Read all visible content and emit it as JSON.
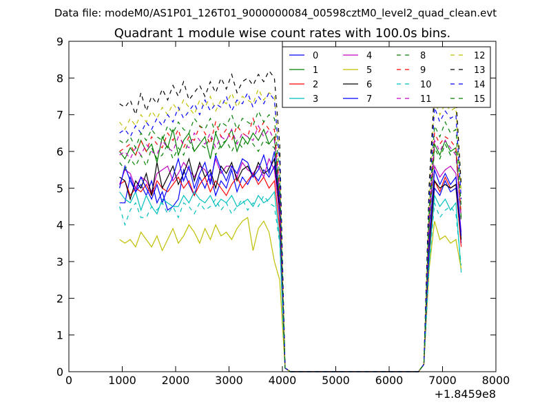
{
  "suptitle": "Data file: modeM0/AS1P01_126T01_9000000084_00598cztM0_level2_quad_clean.evt",
  "chart_data": {
    "type": "line",
    "title": "Quadrant 1 module wise count rates with 100.0s bins.",
    "xlabel": "",
    "ylabel": "",
    "x_offset_label": "+1.8459e8",
    "xlim": [
      0,
      8000
    ],
    "ylim": [
      0,
      9
    ],
    "xticks": [
      "0",
      "1000",
      "2000",
      "3000",
      "4000",
      "5000",
      "6000",
      "7000",
      "8000"
    ],
    "yticks": [
      "0",
      "1",
      "2",
      "3",
      "4",
      "5",
      "6",
      "7",
      "8",
      "9"
    ],
    "legend_position": "top-right",
    "x": [
      950,
      1050,
      1150,
      1250,
      1350,
      1450,
      1550,
      1650,
      1750,
      1850,
      1950,
      2050,
      2150,
      2250,
      2350,
      2450,
      2550,
      2650,
      2750,
      2850,
      2950,
      3050,
      3150,
      3250,
      3350,
      3450,
      3550,
      3650,
      3750,
      3850,
      3950,
      4050,
      4150,
      4250,
      4350,
      4450,
      4550,
      4650,
      4750,
      4850,
      4950,
      5050,
      5150,
      5250,
      5350,
      5450,
      5550,
      5650,
      5750,
      5850,
      5950,
      6050,
      6150,
      6250,
      6350,
      6450,
      6550,
      6650,
      6750,
      6850,
      6950,
      7050,
      7150,
      7250,
      7350
    ],
    "series": [
      {
        "name": "0",
        "color": "#0000ff",
        "dash": "solid",
        "values": [
          4.6,
          4.6,
          5.3,
          4.9,
          5.1,
          4.8,
          5.2,
          4.6,
          4.9,
          4.4,
          4.5,
          4.7,
          5.5,
          5.1,
          4.8,
          5.3,
          5.0,
          5.4,
          4.8,
          5.2,
          5.0,
          5.5,
          4.9,
          5.3,
          5.1,
          5.4,
          5.2,
          5.5,
          5.3,
          5.6,
          4.2,
          0.1,
          0,
          0,
          0,
          0,
          0,
          0,
          0,
          0,
          0,
          0,
          0,
          0,
          0,
          0,
          0,
          0,
          0,
          0,
          0,
          0,
          0,
          0,
          0,
          0,
          0,
          0.2,
          3.3,
          5.0,
          4.8,
          5.2,
          4.9,
          5.0,
          3.5
        ]
      },
      {
        "name": "1",
        "color": "#008000",
        "dash": "solid",
        "values": [
          6.0,
          5.8,
          6.1,
          5.9,
          6.3,
          6.0,
          6.2,
          5.7,
          6.4,
          6.1,
          6.6,
          5.9,
          6.3,
          6.5,
          6.0,
          6.2,
          6.4,
          5.8,
          6.5,
          6.1,
          6.3,
          6.6,
          6.0,
          6.4,
          6.2,
          6.5,
          6.3,
          6.6,
          6.2,
          6.4,
          4.8,
          0.1,
          0,
          0,
          0,
          0,
          0,
          0,
          0,
          0,
          0,
          0,
          0,
          0,
          0,
          0,
          0,
          0,
          0,
          0,
          0,
          0,
          0,
          0,
          0,
          0,
          0,
          0.2,
          4.0,
          6.2,
          5.9,
          6.3,
          6.0,
          6.1,
          4.2
        ]
      },
      {
        "name": "2",
        "color": "#ff0000",
        "dash": "solid",
        "values": [
          5.1,
          5.2,
          4.8,
          5.0,
          4.9,
          5.1,
          4.8,
          5.2,
          5.0,
          4.9,
          5.1,
          5.3,
          5.0,
          5.2,
          4.8,
          5.1,
          5.3,
          4.9,
          5.2,
          5.0,
          4.8,
          5.1,
          5.3,
          5.0,
          5.2,
          5.4,
          5.1,
          5.3,
          5.0,
          5.2,
          3.9,
          0.1,
          0,
          0,
          0,
          0,
          0,
          0,
          0,
          0,
          0,
          0,
          0,
          0,
          0,
          0,
          0,
          0,
          0,
          0,
          0,
          0,
          0,
          0,
          0,
          0,
          0,
          0.2,
          3.1,
          5.2,
          4.9,
          5.3,
          5.0,
          5.1,
          3.4
        ]
      },
      {
        "name": "3",
        "color": "#00bfbf",
        "dash": "solid",
        "values": [
          4.9,
          4.7,
          4.6,
          4.9,
          4.4,
          4.8,
          4.5,
          4.3,
          4.7,
          4.6,
          4.5,
          4.5,
          4.8,
          4.6,
          4.9,
          4.7,
          4.6,
          4.8,
          4.5,
          4.7,
          4.6,
          4.8,
          4.5,
          4.6,
          4.7,
          4.5,
          4.8,
          4.6,
          4.7,
          4.9,
          3.6,
          0.1,
          0,
          0,
          0,
          0,
          0,
          0,
          0,
          0,
          0,
          0,
          0,
          0,
          0,
          0,
          0,
          0,
          0,
          0,
          0,
          0,
          0,
          0,
          0,
          0,
          0,
          0.2,
          3.0,
          4.8,
          4.5,
          4.7,
          4.4,
          4.6,
          2.7
        ]
      },
      {
        "name": "4",
        "color": "#bf00bf",
        "dash": "solid",
        "values": [
          5.1,
          5.5,
          5.4,
          5.0,
          5.3,
          5.2,
          4.9,
          5.4,
          5.5,
          5.6,
          5.2,
          5.4,
          5.7,
          5.5,
          5.3,
          5.6,
          5.5,
          5.2,
          5.8,
          5.4,
          5.6,
          5.6,
          5.3,
          5.7,
          5.5,
          5.4,
          5.6,
          5.3,
          5.8,
          5.5,
          4.3,
          0.1,
          0,
          0,
          0,
          0,
          0,
          0,
          0,
          0,
          0,
          0,
          0,
          0,
          0,
          0,
          0,
          0,
          0,
          0,
          0,
          0,
          0,
          0,
          0,
          0,
          0,
          0.2,
          3.6,
          5.6,
          5.3,
          5.5,
          5.6,
          5.4,
          3.8
        ]
      },
      {
        "name": "5",
        "color": "#bfbf00",
        "dash": "solid",
        "values": [
          3.6,
          3.5,
          3.6,
          3.4,
          3.8,
          3.6,
          3.4,
          3.7,
          3.3,
          3.6,
          3.9,
          3.5,
          3.7,
          4.0,
          3.8,
          3.5,
          3.9,
          3.6,
          4.0,
          3.7,
          3.8,
          3.6,
          3.9,
          4.1,
          4.2,
          3.3,
          3.9,
          4.1,
          3.8,
          3.0,
          2.5,
          0.1,
          0,
          0,
          0,
          0,
          0,
          0,
          0,
          0,
          0,
          0,
          0,
          0,
          0,
          0,
          0,
          0,
          0,
          0,
          0,
          0,
          0,
          0,
          0,
          0,
          0,
          0.2,
          2.8,
          4.1,
          3.6,
          3.7,
          3.5,
          3.6,
          2.8
        ]
      },
      {
        "name": "6",
        "color": "#000000",
        "dash": "solid",
        "values": [
          5.3,
          5.2,
          4.7,
          5.2,
          5.0,
          5.4,
          4.8,
          5.7,
          5.0,
          5.3,
          5.6,
          5.1,
          5.4,
          5.8,
          5.2,
          5.7,
          5.3,
          5.5,
          5.0,
          5.6,
          5.4,
          5.7,
          5.2,
          5.5,
          5.6,
          5.3,
          5.7,
          5.4,
          5.5,
          5.8,
          4.4,
          0.1,
          0,
          0,
          0,
          0,
          0,
          0,
          0,
          0,
          0,
          0,
          0,
          0,
          0,
          0,
          0,
          0,
          0,
          0,
          0,
          0,
          0,
          0,
          0,
          0,
          0,
          0.2,
          3.4,
          5.2,
          5.0,
          5.1,
          5.0,
          5.1,
          3.6
        ]
      },
      {
        "name": "7",
        "color": "#0000ff",
        "dash": "solid",
        "values": [
          5.0,
          5.6,
          5.2,
          4.9,
          5.3,
          5.0,
          4.7,
          5.1,
          4.6,
          5.0,
          5.3,
          5.8,
          5.2,
          5.6,
          5.0,
          5.4,
          5.7,
          5.1,
          5.9,
          5.5,
          5.2,
          5.6,
          5.4,
          5.8,
          5.7,
          5.3,
          5.5,
          5.9,
          5.4,
          6.0,
          4.6,
          0.1,
          0,
          0,
          0,
          0,
          0,
          0,
          0,
          0,
          0,
          0,
          0,
          0,
          0,
          0,
          0,
          0,
          0,
          0,
          0,
          0,
          0,
          0,
          0,
          0,
          0,
          0.2,
          3.5,
          5.5,
          5.1,
          5.4,
          5.1,
          5.3,
          3.7
        ]
      },
      {
        "name": "8",
        "color": "#008000",
        "dash": "dashed",
        "values": [
          5.7,
          5.5,
          5.8,
          5.6,
          5.9,
          5.6,
          6.1,
          5.8,
          5.9,
          6.2,
          5.8,
          6.1,
          5.9,
          6.3,
          6.0,
          6.2,
          6.1,
          6.4,
          5.9,
          6.2,
          6.3,
          6.0,
          6.3,
          6.1,
          6.4,
          6.2,
          6.0,
          6.3,
          6.2,
          6.1,
          4.7,
          0.1,
          0,
          0,
          0,
          0,
          0,
          0,
          0,
          0,
          0,
          0,
          0,
          0,
          0,
          0,
          0,
          0,
          0,
          0,
          0,
          0,
          0,
          0,
          0,
          0,
          0,
          0.2,
          3.9,
          6.1,
          5.8,
          6.2,
          5.9,
          6.0,
          4.1
        ]
      },
      {
        "name": "9",
        "color": "#ff0000",
        "dash": "dashed",
        "values": [
          6.0,
          6.1,
          6.2,
          5.9,
          6.3,
          6.0,
          6.4,
          6.2,
          6.1,
          6.5,
          6.3,
          6.6,
          6.1,
          6.4,
          6.3,
          6.7,
          6.5,
          6.2,
          6.8,
          6.4,
          6.6,
          6.3,
          6.7,
          6.5,
          6.4,
          6.9,
          6.5,
          6.8,
          6.6,
          6.6,
          5.0,
          0.1,
          0,
          0,
          0,
          0,
          0,
          0,
          0,
          0,
          0,
          0,
          0,
          0,
          0,
          0,
          0,
          0,
          0,
          0,
          0,
          0,
          0,
          0,
          0,
          0,
          0,
          0.2,
          4.2,
          6.5,
          6.2,
          6.4,
          6.3,
          6.1,
          4.3
        ]
      },
      {
        "name": "10",
        "color": "#00bfbf",
        "dash": "dashed",
        "values": [
          4.5,
          4.0,
          4.4,
          4.6,
          4.2,
          4.2,
          4.5,
          4.4,
          4.6,
          4.3,
          4.5,
          4.2,
          4.6,
          4.5,
          4.3,
          4.6,
          4.4,
          4.5,
          4.7,
          4.4,
          4.6,
          4.3,
          4.5,
          4.7,
          4.4,
          4.6,
          4.5,
          4.8,
          4.6,
          4.5,
          3.5,
          0.1,
          0,
          0,
          0,
          0,
          0,
          0,
          0,
          0,
          0,
          0,
          0,
          0,
          0,
          0,
          0,
          0,
          0,
          0,
          0,
          0,
          0,
          0,
          0,
          0,
          0,
          0.2,
          2.9,
          4.6,
          4.2,
          4.4,
          4.5,
          4.3,
          2.9
        ]
      },
      {
        "name": "11",
        "color": "#bf00bf",
        "dash": "dashed",
        "values": [
          5.9,
          6.0,
          5.8,
          6.1,
          5.9,
          6.2,
          6.0,
          5.9,
          6.3,
          6.1,
          6.0,
          6.4,
          6.2,
          6.1,
          6.5,
          6.3,
          6.2,
          6.5,
          6.1,
          6.4,
          6.3,
          6.6,
          6.2,
          6.5,
          6.4,
          6.3,
          6.7,
          6.4,
          6.6,
          6.3,
          4.9,
          0.1,
          0,
          0,
          0,
          0,
          0,
          0,
          0,
          0,
          0,
          0,
          0,
          0,
          0,
          0,
          0,
          0,
          0,
          0,
          0,
          0,
          0,
          0,
          0,
          0,
          0,
          0.2,
          4.1,
          6.3,
          6.0,
          6.3,
          6.1,
          5.9,
          4.2
        ]
      },
      {
        "name": "12",
        "color": "#bfbf00",
        "dash": "dashed",
        "values": [
          6.8,
          6.6,
          6.9,
          6.7,
          7.0,
          6.8,
          7.1,
          6.9,
          7.2,
          7.0,
          7.3,
          7.1,
          7.4,
          7.2,
          7.0,
          7.4,
          7.2,
          7.5,
          7.1,
          7.4,
          7.3,
          7.6,
          7.2,
          7.5,
          7.4,
          7.3,
          7.7,
          7.4,
          7.6,
          7.5,
          5.8,
          0.1,
          0,
          0,
          0,
          0,
          0,
          0,
          0,
          0,
          0,
          0,
          0,
          0,
          0,
          0,
          0,
          0,
          0,
          0,
          0,
          0,
          0,
          0,
          0,
          0,
          0,
          0.2,
          4.8,
          7.4,
          7.0,
          7.3,
          7.1,
          7.2,
          4.9
        ]
      },
      {
        "name": "13",
        "color": "#000000",
        "dash": "dashed",
        "values": [
          7.3,
          7.2,
          7.4,
          7.0,
          7.6,
          7.1,
          7.5,
          7.3,
          7.7,
          7.4,
          7.8,
          7.5,
          7.9,
          7.4,
          7.6,
          7.8,
          7.5,
          7.9,
          7.6,
          8.0,
          7.7,
          8.1,
          7.6,
          7.9,
          8.0,
          7.8,
          8.1,
          7.9,
          8.2,
          8.0,
          6.2,
          0.1,
          0,
          0,
          0,
          0,
          0,
          0,
          0,
          0,
          0,
          0,
          0,
          0,
          0,
          0,
          0,
          0,
          0,
          0,
          0,
          0,
          0,
          0,
          0,
          0,
          0,
          0.2,
          5.1,
          7.7,
          7.3,
          7.6,
          7.4,
          7.5,
          5.1
        ]
      },
      {
        "name": "14",
        "color": "#0000ff",
        "dash": "dashed",
        "values": [
          6.5,
          6.6,
          6.4,
          6.7,
          6.5,
          6.8,
          6.6,
          6.9,
          6.7,
          7.0,
          6.8,
          7.2,
          6.9,
          7.1,
          7.3,
          7.0,
          7.4,
          7.1,
          7.3,
          7.2,
          7.5,
          7.1,
          7.4,
          7.3,
          7.6,
          7.2,
          7.5,
          7.3,
          7.6,
          7.4,
          5.7,
          0.1,
          0,
          0,
          0,
          0,
          0,
          0,
          0,
          0,
          0,
          0,
          0,
          0,
          0,
          0,
          0,
          0,
          0,
          0,
          0,
          0,
          0,
          0,
          0,
          0,
          0,
          0.2,
          4.6,
          7.2,
          6.8,
          7.1,
          6.9,
          7.0,
          4.7
        ]
      },
      {
        "name": "15",
        "color": "#008000",
        "dash": "dashed",
        "values": [
          6.3,
          6.2,
          6.4,
          6.1,
          6.5,
          6.3,
          6.6,
          6.4,
          6.3,
          6.7,
          6.5,
          6.8,
          6.6,
          6.5,
          6.9,
          6.7,
          6.6,
          6.9,
          6.5,
          6.8,
          6.7,
          7.0,
          6.6,
          6.9,
          6.8,
          6.7,
          7.1,
          6.8,
          7.0,
          6.9,
          5.3,
          0.1,
          0,
          0,
          0,
          0,
          0,
          0,
          0,
          0,
          0,
          0,
          0,
          0,
          0,
          0,
          0,
          0,
          0,
          0,
          0,
          0,
          0,
          0,
          0,
          0,
          0,
          0.2,
          4.4,
          6.7,
          6.4,
          6.8,
          6.5,
          6.6,
          4.5
        ]
      }
    ]
  }
}
